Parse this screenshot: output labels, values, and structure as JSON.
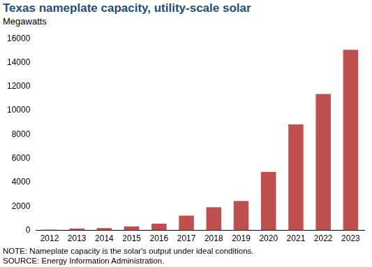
{
  "chart_data": {
    "type": "bar",
    "title": "Texas nameplate capacity, utility-scale solar",
    "subtitle": "Megawatts",
    "notes": [
      "NOTE: Nameplate capacity is the solar's output under ideal conditions.",
      "SOURCE: Energy Information Administration."
    ],
    "categories": [
      "2012",
      "2013",
      "2014",
      "2015",
      "2016",
      "2017",
      "2018",
      "2019",
      "2020",
      "2021",
      "2022",
      "2023"
    ],
    "values": [
      70,
      150,
      200,
      330,
      560,
      1230,
      1930,
      2450,
      4880,
      8840,
      11380,
      15070
    ],
    "color": "#c0504d",
    "ylim": [
      0,
      16000
    ],
    "yticks": [
      0,
      2000,
      4000,
      6000,
      8000,
      10000,
      12000,
      14000,
      16000
    ],
    "grid": false
  }
}
